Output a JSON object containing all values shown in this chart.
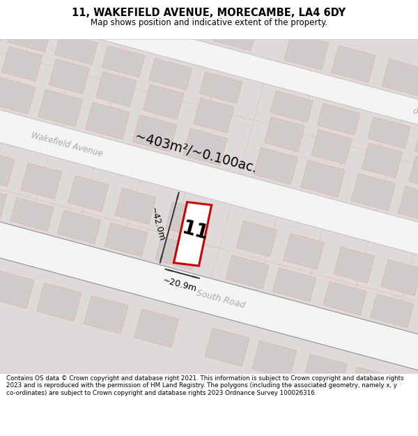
{
  "title": "11, WAKEFIELD AVENUE, MORECAMBE, LA4 6DY",
  "subtitle": "Map shows position and indicative extent of the property.",
  "footer": "Contains OS data © Crown copyright and database right 2021. This information is subject to Crown copyright and database rights 2023 and is reproduced with the permission of HM Land Registry. The polygons (including the associated geometry, namely x, y co-ordinates) are subject to Crown copyright and database rights 2023 Ordnance Survey 100026316.",
  "area_label": "~403m²/~0.100ac.",
  "dim_width": "~20.9m",
  "dim_height": "~42.0m",
  "plot_number": "11",
  "plot_red": "#cc0000",
  "road_label_color": "#aaaaaa",
  "map_bg": "#ede9e9",
  "block_fill": "#dedada",
  "road_fill": "#f5f3f3",
  "building_fill": "#d0cccc",
  "building_edge": "#e8b0b0",
  "lot_line_color": "#e8b8b8",
  "dim_line_color": "#333333"
}
